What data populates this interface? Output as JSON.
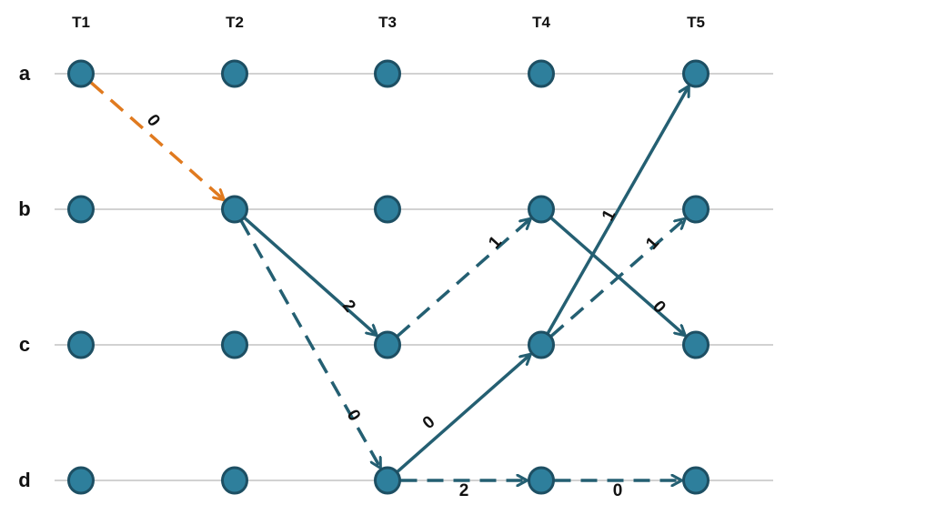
{
  "columns": [
    "T1",
    "T2",
    "T3",
    "T4",
    "T5"
  ],
  "rows": [
    "a",
    "b",
    "c",
    "d"
  ],
  "colors": {
    "node_fill": "#2e7f9c",
    "node_stroke": "#1d4f63",
    "edge": "#245f72",
    "highlight_edge": "#e07a1f",
    "row_line": "#b8b8b8"
  },
  "edges": [
    {
      "from": "a",
      "to": "b",
      "from_col": 0,
      "to_col": 1,
      "label": "0",
      "style": "dashed",
      "highlight": true
    },
    {
      "from": "b",
      "to": "c",
      "from_col": 1,
      "to_col": 2,
      "label": "2",
      "style": "solid",
      "highlight": false
    },
    {
      "from": "b",
      "to": "d",
      "from_col": 1,
      "to_col": 2,
      "label": "0",
      "style": "dashed",
      "highlight": false
    },
    {
      "from": "c",
      "to": "b",
      "from_col": 2,
      "to_col": 3,
      "label": "1",
      "style": "dashed",
      "highlight": false
    },
    {
      "from": "d",
      "to": "c",
      "from_col": 2,
      "to_col": 3,
      "label": "0",
      "style": "solid",
      "highlight": false
    },
    {
      "from": "d",
      "to": "d",
      "from_col": 2,
      "to_col": 3,
      "label": "2",
      "style": "dashed",
      "highlight": false
    },
    {
      "from": "c",
      "to": "a",
      "from_col": 3,
      "to_col": 4,
      "label": "1",
      "style": "solid",
      "highlight": false
    },
    {
      "from": "c",
      "to": "b",
      "from_col": 3,
      "to_col": 4,
      "label": "1",
      "style": "dashed",
      "highlight": false
    },
    {
      "from": "b",
      "to": "c",
      "from_col": 3,
      "to_col": 4,
      "label": "0",
      "style": "solid",
      "highlight": false
    },
    {
      "from": "d",
      "to": "d",
      "from_col": 3,
      "to_col": 4,
      "label": "0",
      "style": "dashed",
      "highlight": false
    }
  ]
}
